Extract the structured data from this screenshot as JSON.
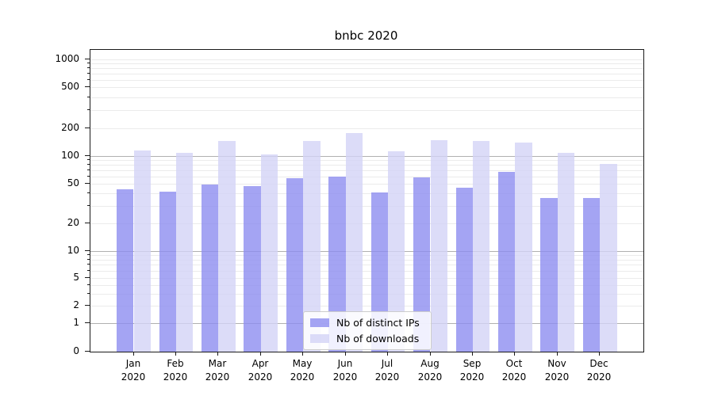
{
  "chart_data": {
    "type": "bar",
    "title": "bnbc 2020",
    "months": [
      "Jan",
      "Feb",
      "Mar",
      "Apr",
      "May",
      "Jun",
      "Jul",
      "Aug",
      "Sep",
      "Oct",
      "Nov",
      "Dec"
    ],
    "year_label": "2020",
    "series": [
      {
        "name": "Nb of distinct IPs",
        "color": "rgba(141,141,240,0.8)",
        "values": [
          44,
          42,
          49,
          47,
          57,
          60,
          41,
          59,
          46,
          67,
          36,
          36
        ]
      },
      {
        "name": "Nb of downloads",
        "color": "rgba(211,211,246,0.8)",
        "values": [
          115,
          109,
          146,
          105,
          146,
          179,
          113,
          150,
          145,
          139,
          108,
          82
        ]
      }
    ],
    "yscale": "symlog",
    "ylim": [
      0,
      1000
    ],
    "y_tick_values": [
      0,
      1,
      2,
      5,
      10,
      20,
      50,
      100,
      200,
      500,
      1000
    ],
    "grid": true,
    "legend_position": "lower center"
  }
}
